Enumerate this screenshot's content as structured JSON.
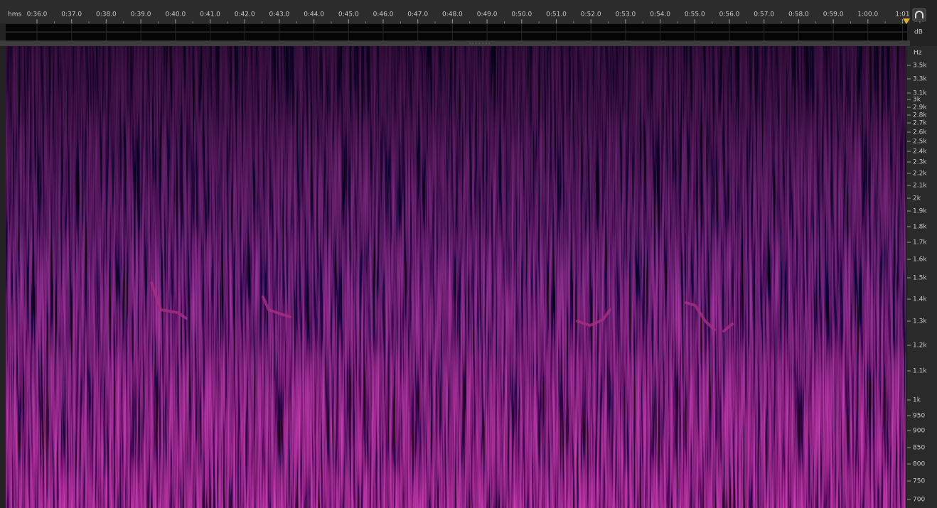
{
  "ruler": {
    "unit": "hms",
    "labels": [
      "0:36.0",
      "0:37.0",
      "0:38.0",
      "0:39.0",
      "0:40.0",
      "0:41.0",
      "0:42.0",
      "0:43.0",
      "0:44.0",
      "0:45.0",
      "0:46.0",
      "0:47.0",
      "0:48.0",
      "0:49.0",
      "0:50.0",
      "0:51.0",
      "0:52.0",
      "0:53.0",
      "0:54.0",
      "0:55.0",
      "0:56.0",
      "0:57.0",
      "0:58.0",
      "0:59.0",
      "1:00.0",
      "1:01"
    ]
  },
  "level_meter": {
    "unit": "dB"
  },
  "frequency_ruler": {
    "unit": "Hz",
    "labels": [
      "3.5k",
      "3.3k",
      "3.1k",
      "3k",
      "2.9k",
      "2.8k",
      "2.7k",
      "2.6k",
      "2.5k",
      "2.4k",
      "2.3k",
      "2.2k",
      "2.1k",
      "2k",
      "1.9k",
      "1.8k",
      "1.7k",
      "1.6k",
      "1.5k",
      "1.4k",
      "1.3k",
      "1.2k",
      "1.1k",
      "1k",
      "950",
      "900",
      "850",
      "800",
      "750",
      "700"
    ]
  }
}
